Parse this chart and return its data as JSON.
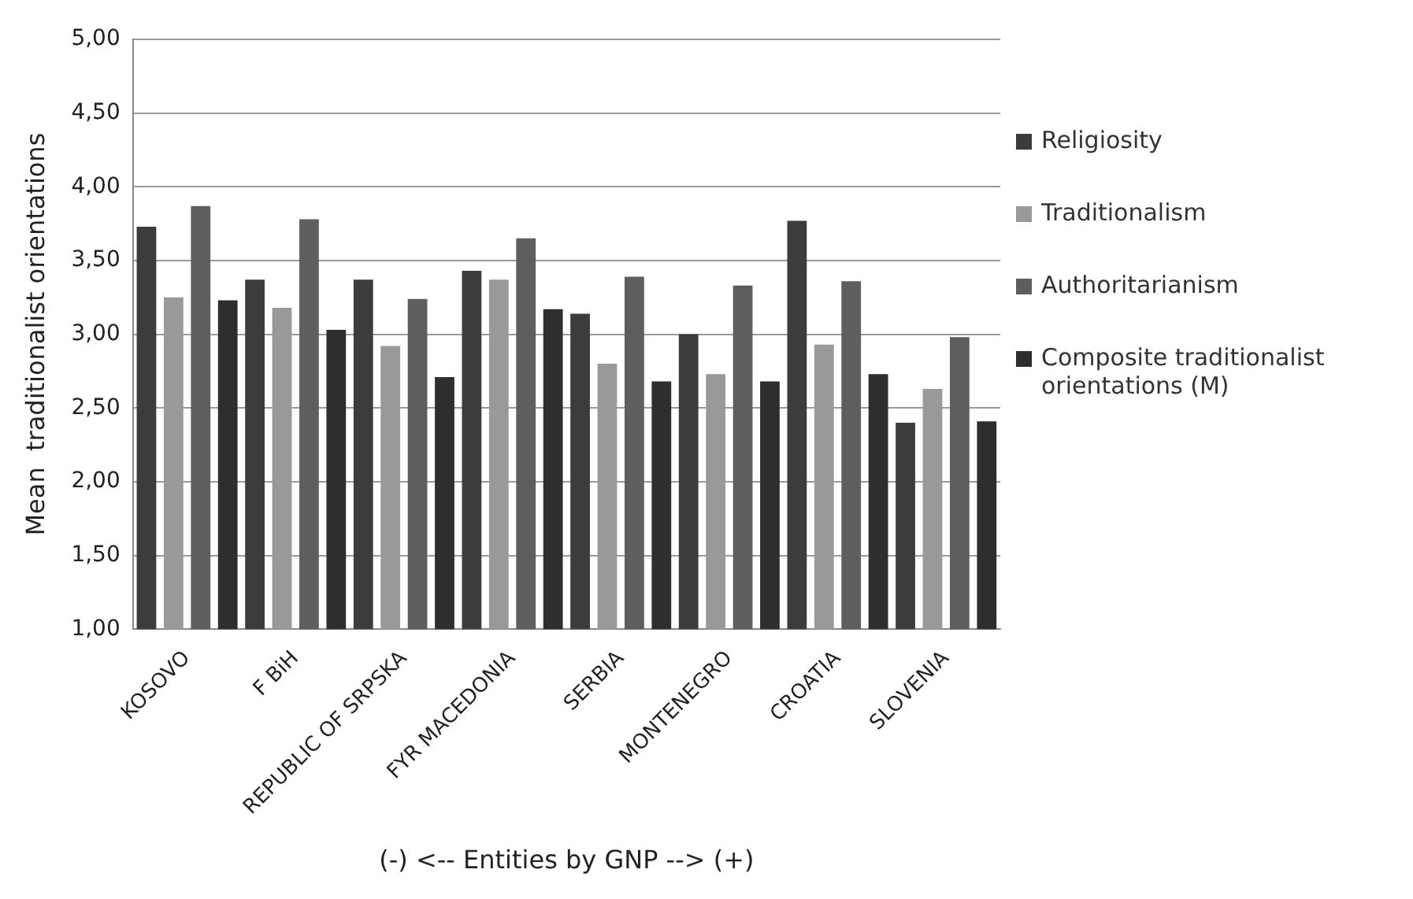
{
  "chart_data": {
    "type": "bar",
    "xlabel": "(-) <-- Entities by GNP --> (+)",
    "ylabel": "Mean  traditionalist orientations",
    "categories": [
      "KOSOVO",
      "F BiH",
      "REPUBLIC OF SRPSKA",
      "FYR MACEDONIA",
      "SERBIA",
      "MONTENEGRO",
      "CROATIA",
      "SLOVENIA"
    ],
    "series": [
      {
        "name": "Religiosity",
        "color": "#3c3c3c",
        "values": [
          3.73,
          3.37,
          3.37,
          3.43,
          3.14,
          3.0,
          3.77,
          2.4
        ]
      },
      {
        "name": "Traditionalism",
        "color": "#999999",
        "values": [
          3.25,
          3.18,
          2.92,
          3.37,
          2.8,
          2.73,
          2.93,
          2.63
        ]
      },
      {
        "name": "Authoritarianism",
        "color": "#5e5e5e",
        "values": [
          3.87,
          3.78,
          3.24,
          3.65,
          3.39,
          3.33,
          3.36,
          2.98
        ]
      },
      {
        "name": "Composite traditionalist orientations (M)",
        "color": "#2e2e2e",
        "values": [
          3.23,
          3.03,
          2.71,
          3.17,
          2.68,
          2.68,
          2.73,
          2.41
        ]
      }
    ],
    "ylim": [
      1,
      5
    ],
    "yticks": [
      {
        "value": 1,
        "label": "1,00"
      },
      {
        "value": 1.5,
        "label": "1,50"
      },
      {
        "value": 2,
        "label": "2,00"
      },
      {
        "value": 2.5,
        "label": "2,50"
      },
      {
        "value": 3,
        "label": "3,00"
      },
      {
        "value": 3.5,
        "label": "3,50"
      },
      {
        "value": 4,
        "label": "4,00"
      },
      {
        "value": 4.5,
        "label": "4,50"
      },
      {
        "value": 5,
        "label": "5,00"
      }
    ],
    "grid": "y",
    "legend": "right"
  }
}
